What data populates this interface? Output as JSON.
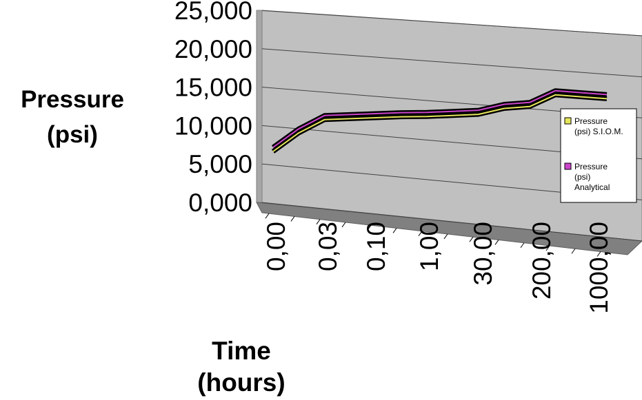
{
  "chart_data": {
    "type": "line",
    "title": "",
    "ylabel_line1": "Pressure",
    "ylabel_line2": "(psi)",
    "xlabel_line1": "Time",
    "xlabel_line2": "(hours)",
    "y_ticks": [
      "0,000",
      "5,000",
      "10,000",
      "15,000",
      "20,000",
      "25,000"
    ],
    "ylim": [
      0,
      25000
    ],
    "x_tick_labels": [
      "0,00",
      "0,03",
      "0,10",
      "1,00",
      "30,00",
      "200,00",
      "1000,00"
    ],
    "x": [
      "0,00",
      "",
      "",
      "0,03",
      "",
      "0,10",
      "",
      "1,00",
      "",
      "30,00",
      "",
      "200,00",
      "",
      "1000,00"
    ],
    "series": [
      {
        "name": "Pressure (psi) S.I.O.M.",
        "color": "#e6e65a",
        "values": [
          7300,
          10000,
          12000,
          12400,
          12800,
          13200,
          13500,
          13900,
          14300,
          15300,
          15800,
          17500,
          17500,
          17500
        ]
      },
      {
        "name": "Pressure (psi) Analytical",
        "color": "#cc44cc",
        "values": [
          7300,
          10000,
          12000,
          12400,
          12800,
          13200,
          13500,
          13900,
          14300,
          15300,
          15800,
          17500,
          17500,
          17500
        ]
      }
    ],
    "legend_position": "right",
    "grid": true,
    "style": "3d-line",
    "wall_color": "#c0c0c0",
    "floor_color": "#808080"
  }
}
